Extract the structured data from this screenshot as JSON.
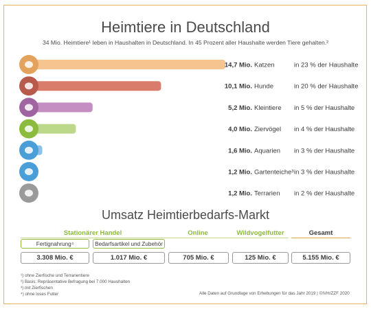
{
  "header": {
    "title": "Heimtiere in Deutschland",
    "subtitle": "34 Mio. Heimtiere¹ leben in Haushalten in Deutschland. In 45 Prozent aller Haushalte werden Tiere gehalten.²"
  },
  "chart_data": {
    "type": "bar",
    "orientation": "horizontal",
    "unit": "Mio.",
    "categories": [
      "Katzen",
      "Hunde",
      "Kleintiere",
      "Ziervögel",
      "Aquarien",
      "Gartenteiche³",
      "Terrarien"
    ],
    "values": [
      14.7,
      10.1,
      5.2,
      4.0,
      1.6,
      1.2,
      1.2
    ],
    "value_labels": [
      "14,7 Mio.",
      "10,1 Mio.",
      "5,2 Mio.",
      "4,0 Mio.",
      "1,6 Mio.",
      "1,2 Mio.",
      "1,2 Mio."
    ],
    "household_labels": [
      "in 23 % der Haushalte",
      "in 20 % der Haushalte",
      "in   5 % der Haushalte",
      "in   4 % der Haushalte",
      "in   3 % der Haushalte",
      "in   3 % der Haushalte",
      "in   2 % der Haushalte"
    ],
    "household_share": [
      23,
      20,
      5,
      4,
      3,
      3,
      2
    ],
    "icons": [
      "cat-icon",
      "dog-icon",
      "rabbit-icon",
      "bird-icon",
      "fish-icon",
      "pond-fish-icon",
      "turtle-icon"
    ],
    "colors": [
      "#f5c48f",
      "#d97c6c",
      "#c48ec2",
      "#bcd98a",
      "#8dc2e8",
      "#8dc2e8",
      "#c8c8c8"
    ],
    "icon_colors": [
      "#e4a35c",
      "#b85a4c",
      "#a064a0",
      "#8cbb3e",
      "#4a9fd8",
      "#4a9fd8",
      "#9a9a9a"
    ],
    "xlim": [
      0,
      14.7
    ]
  },
  "market": {
    "title": "Umsatz Heimtierbedarfs-Markt",
    "col_stationary": "Stationärer Handel",
    "sub_food": "Fertignahrung⁴",
    "sub_supplies": "Bedarfsartikel und Zubehör",
    "col_online": "Online",
    "col_wild": "Wildvogelfutter",
    "col_total": "Gesamt",
    "v_food": "3.308 Mio. €",
    "v_supplies": "1.017 Mio. €",
    "v_online": "705 Mio. €",
    "v_wild": "125 Mio. €",
    "v_total": "5.155 Mio. €"
  },
  "footnotes": [
    "¹) ohne Zierfische und Terrarientiere",
    "²) Basis: Repräsentative Befragung bei 7.000 Haushalten",
    "³) mit Zierfischen",
    "⁴) ohne loses Futter"
  ],
  "source": "Alle Daten auf Grundlage von Erhebungen für das Jahr 2019 | ©IVH/ZZF 2020"
}
